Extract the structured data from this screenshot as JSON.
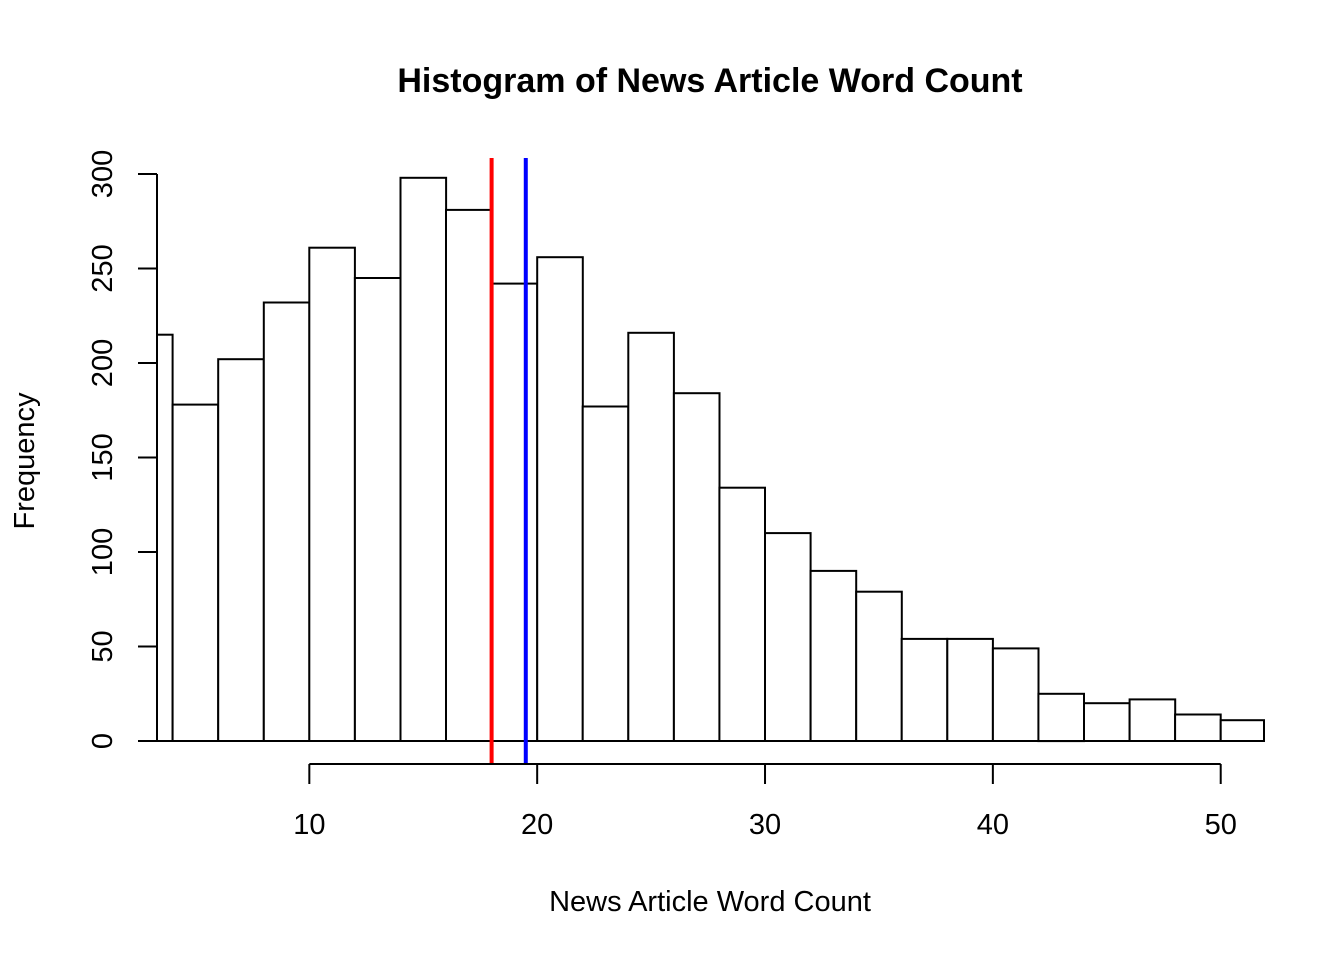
{
  "chart_data": {
    "type": "bar",
    "title": "Histogram of News Article Word Count",
    "xlabel": "News Article Word Count",
    "ylabel": "Frequency",
    "bins": [
      {
        "x0": 2,
        "x1": 4,
        "count": 215
      },
      {
        "x0": 4,
        "x1": 6,
        "count": 178
      },
      {
        "x0": 6,
        "x1": 8,
        "count": 202
      },
      {
        "x0": 8,
        "x1": 10,
        "count": 232
      },
      {
        "x0": 10,
        "x1": 12,
        "count": 261
      },
      {
        "x0": 12,
        "x1": 14,
        "count": 245
      },
      {
        "x0": 14,
        "x1": 16,
        "count": 298
      },
      {
        "x0": 16,
        "x1": 18,
        "count": 281
      },
      {
        "x0": 18,
        "x1": 20,
        "count": 242
      },
      {
        "x0": 20,
        "x1": 22,
        "count": 256
      },
      {
        "x0": 22,
        "x1": 24,
        "count": 177
      },
      {
        "x0": 24,
        "x1": 26,
        "count": 216
      },
      {
        "x0": 26,
        "x1": 28,
        "count": 184
      },
      {
        "x0": 28,
        "x1": 30,
        "count": 134
      },
      {
        "x0": 30,
        "x1": 32,
        "count": 110
      },
      {
        "x0": 32,
        "x1": 34,
        "count": 90
      },
      {
        "x0": 34,
        "x1": 36,
        "count": 79
      },
      {
        "x0": 36,
        "x1": 38,
        "count": 54
      },
      {
        "x0": 38,
        "x1": 40,
        "count": 54
      },
      {
        "x0": 40,
        "x1": 42,
        "count": 49
      },
      {
        "x0": 42,
        "x1": 44,
        "count": 25
      },
      {
        "x0": 44,
        "x1": 46,
        "count": 20
      },
      {
        "x0": 46,
        "x1": 48,
        "count": 22
      },
      {
        "x0": 48,
        "x1": 50,
        "count": 14
      },
      {
        "x0": 50,
        "x1": 52,
        "count": 11
      }
    ],
    "xlim": [
      2.7,
      51.9
    ],
    "ylim": [
      0,
      310
    ],
    "xticks": [
      10,
      20,
      30,
      40,
      50
    ],
    "yticks": [
      0,
      50,
      100,
      150,
      200,
      250,
      300
    ],
    "vlines": [
      {
        "x": 18.0,
        "color": "#ff0000"
      },
      {
        "x": 19.5,
        "color": "#0000ff"
      }
    ],
    "bar_fill": "#ffffff",
    "bar_stroke": "#000000",
    "grid": false
  }
}
